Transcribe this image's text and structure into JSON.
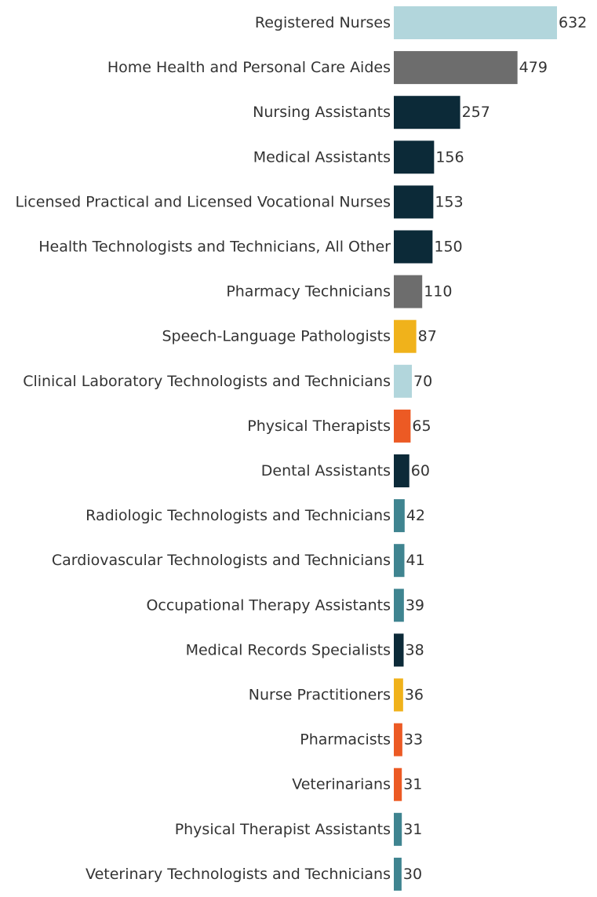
{
  "chart_data": {
    "type": "bar",
    "orientation": "horizontal",
    "title": "",
    "xlabel": "",
    "ylabel": "",
    "xlim": [
      0,
      632
    ],
    "grid": false,
    "legend": "none",
    "categories": [
      "Registered Nurses",
      "Home Health and Personal Care Aides",
      "Nursing Assistants",
      "Medical Assistants",
      "Licensed Practical and Licensed Vocational Nurses",
      "Health Technologists and Technicians, All Other",
      "Pharmacy Technicians",
      "Speech-Language Pathologists",
      "Clinical Laboratory Technologists and Technicians",
      "Physical Therapists",
      "Dental Assistants",
      "Radiologic Technologists and Technicians",
      "Cardiovascular Technologists and Technicians",
      "Occupational Therapy Assistants",
      "Medical Records Specialists",
      "Nurse Practitioners",
      "Pharmacists",
      "Veterinarians",
      "Physical Therapist Assistants",
      "Veterinary Technologists and Technicians"
    ],
    "values": [
      632,
      479,
      257,
      156,
      153,
      150,
      110,
      87,
      70,
      65,
      60,
      42,
      41,
      39,
      38,
      36,
      33,
      31,
      31,
      30
    ],
    "bar_colors": [
      "#b2d6dc",
      "#6d6d6d",
      "#0c2a38",
      "#0c2a38",
      "#0c2a38",
      "#0c2a38",
      "#6d6d6d",
      "#f0b21b",
      "#b2d6dc",
      "#ec5a24",
      "#0c2a38",
      "#3f8490",
      "#3f8490",
      "#3f8490",
      "#0c2a38",
      "#f0b21b",
      "#ec5a24",
      "#ec5a24",
      "#3f8490",
      "#3f8490"
    ]
  }
}
